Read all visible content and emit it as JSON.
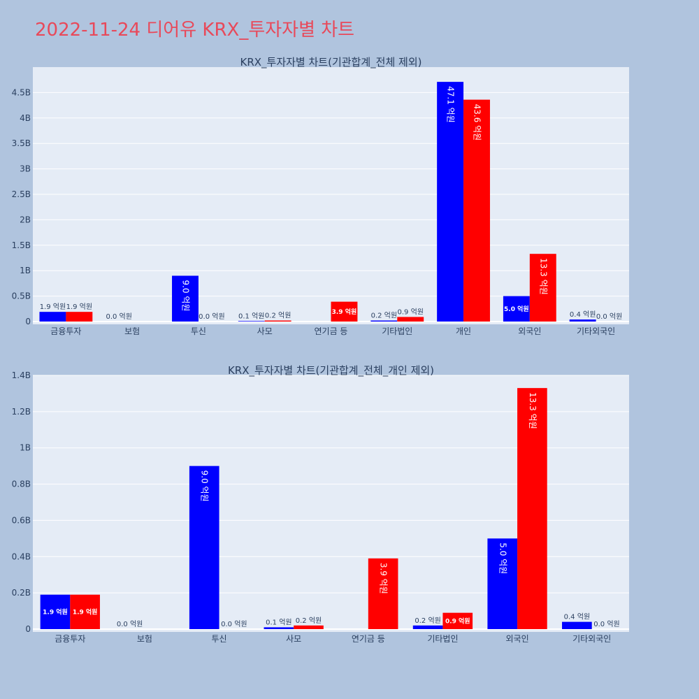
{
  "page": {
    "title": "2022-11-24 디어유 KRX_투자자별 차트"
  },
  "colors": {
    "background": "#b0c4de",
    "plot_bg": "#e5ecf6",
    "grid": "#ffffff",
    "title": "#e8495a",
    "text": "#2a3f5f",
    "series_1": "#0000ff",
    "series_2": "#ff0000"
  },
  "chart_data": [
    {
      "type": "bar",
      "title": "KRX_투자자별 차트(기관합계_전체 제외)",
      "categories": [
        "금융투자",
        "보험",
        "투신",
        "사모",
        "연기금 등",
        "기타법인",
        "개인",
        "외국인",
        "기타외국인"
      ],
      "ylim": [
        0,
        5000000000
      ],
      "yticks": [
        0,
        500000000,
        1000000000,
        1500000000,
        2000000000,
        2500000000,
        3000000000,
        3500000000,
        4000000000,
        4500000000
      ],
      "ytick_labels": [
        "0",
        "0.5B",
        "1B",
        "1.5B",
        "2B",
        "2.5B",
        "3B",
        "3.5B",
        "4B",
        "4.5B"
      ],
      "grid": true,
      "series": [
        {
          "color": "#0000ff",
          "values": [
            190000000,
            0,
            900000000,
            10000000,
            0,
            20000000,
            4710000000,
            500000000,
            40000000
          ],
          "labels": [
            "1.9 억원",
            "0.0 억원",
            "9.0 억원",
            "0.1 억원",
            "",
            "0.2 억원",
            "47.1 억원",
            "5.0 억원",
            "0.4 억원"
          ]
        },
        {
          "color": "#ff0000",
          "values": [
            190000000,
            0,
            0,
            20000000,
            390000000,
            90000000,
            4360000000,
            1330000000,
            0
          ],
          "labels": [
            "1.9 억원",
            "",
            "0.0 억원",
            "0.2 억원",
            "3.9 억원",
            "0.9 억원",
            "43.6 억원",
            "13.3 억원",
            "0.0 억원"
          ]
        }
      ]
    },
    {
      "type": "bar",
      "title": "KRX_투자자별 차트(기관합계_전체_개인 제외)",
      "categories": [
        "금융투자",
        "보험",
        "투신",
        "사모",
        "연기금 등",
        "기타법인",
        "외국인",
        "기타외국인"
      ],
      "ylim": [
        0,
        1400000000
      ],
      "yticks": [
        0,
        200000000,
        400000000,
        600000000,
        800000000,
        1000000000,
        1200000000,
        1400000000
      ],
      "ytick_labels": [
        "0",
        "0.2B",
        "0.4B",
        "0.6B",
        "0.8B",
        "1B",
        "1.2B",
        "1.4B"
      ],
      "grid": true,
      "series": [
        {
          "color": "#0000ff",
          "values": [
            190000000,
            0,
            900000000,
            10000000,
            0,
            20000000,
            500000000,
            40000000
          ],
          "labels": [
            "1.9 억원",
            "0.0 억원",
            "9.0 억원",
            "0.1 억원",
            "",
            "0.2 억원",
            "5.0 억원",
            "0.4 억원"
          ]
        },
        {
          "color": "#ff0000",
          "values": [
            190000000,
            0,
            0,
            20000000,
            390000000,
            90000000,
            1330000000,
            0
          ],
          "labels": [
            "1.9 억원",
            "",
            "0.0 억원",
            "0.2 억원",
            "3.9 억원",
            "0.9 억원",
            "13.3 억원",
            "0.0 억원"
          ]
        }
      ]
    }
  ]
}
